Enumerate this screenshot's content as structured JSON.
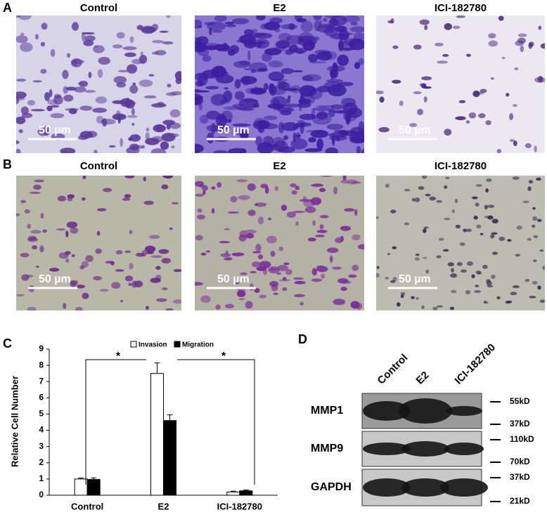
{
  "panels": [
    {
      "label": "A",
      "images": [
        {
          "title": "Control",
          "scale": "50 µm"
        },
        {
          "title": "E2",
          "scale": "50 µm"
        },
        {
          "title": "ICI-182780",
          "scale": "50 µm"
        }
      ]
    },
    {
      "label": "B",
      "images": [
        {
          "title": "Control",
          "scale": "50 µm"
        },
        {
          "title": "E2",
          "scale": "50 µm"
        },
        {
          "title": "ICI-182780",
          "scale": "50 µm"
        }
      ]
    }
  ],
  "chart_data": {
    "type": "bar",
    "label": "C",
    "ylabel": "Relative Cell Number",
    "categories": [
      "Control",
      "E2",
      "ICI-182780"
    ],
    "series": [
      {
        "name": "Invasion",
        "color": "#ffffff",
        "values": [
          1.0,
          7.5,
          0.2
        ],
        "errors": [
          0.06,
          0.65,
          0.05
        ]
      },
      {
        "name": "Migration",
        "color": "#000000",
        "values": [
          0.97,
          4.6,
          0.27
        ],
        "errors": [
          0.1,
          0.35,
          0.05
        ]
      }
    ],
    "ylim": [
      0,
      9
    ],
    "yticks": [
      0,
      1,
      2,
      3,
      4,
      5,
      6,
      7,
      8,
      9
    ],
    "annotations": [
      "*",
      "*"
    ]
  },
  "blot": {
    "label": "D",
    "lanes": [
      "Control",
      "E2",
      "ICI-182780"
    ],
    "rows": [
      {
        "name": "MMP1",
        "markers": [
          "55kD",
          "37kD"
        ]
      },
      {
        "name": "MMP9",
        "markers": [
          "110kD",
          "70kD"
        ]
      },
      {
        "name": "GAPDH",
        "markers": [
          "37kD",
          "21kD"
        ]
      }
    ]
  }
}
